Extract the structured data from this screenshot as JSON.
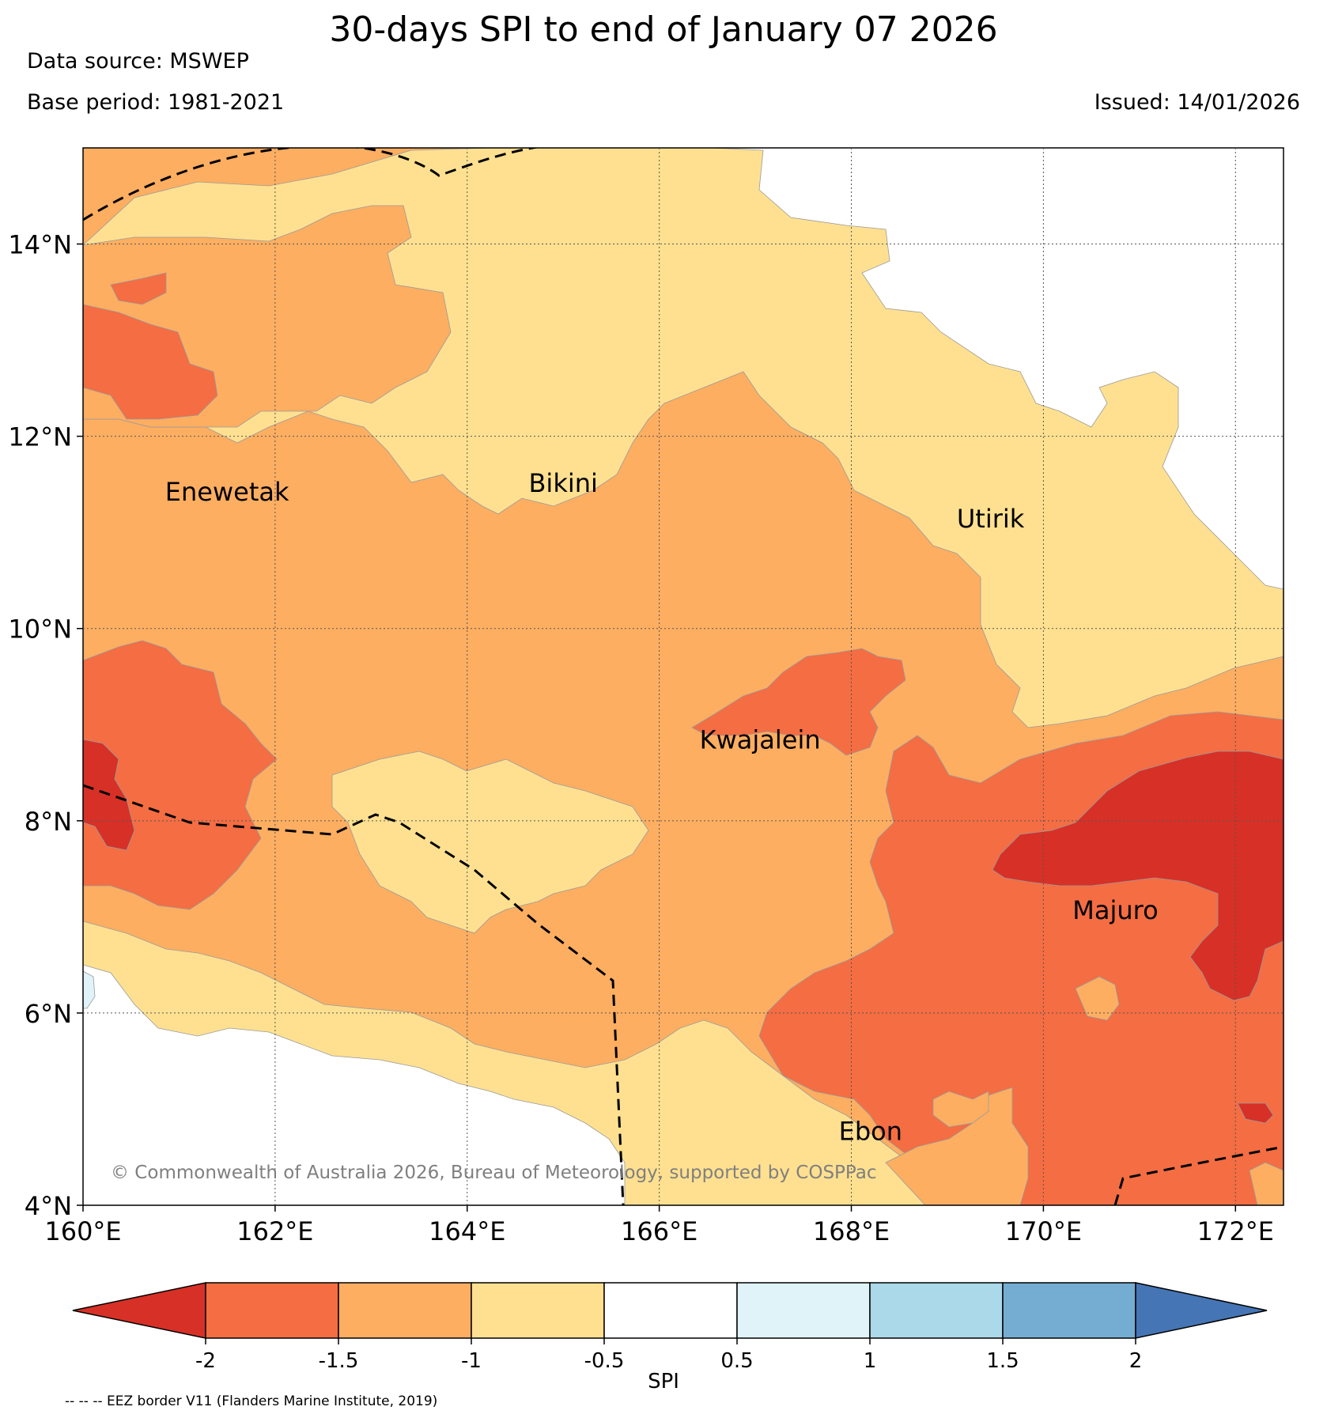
{
  "title": "30-days SPI to end of January 07 2026",
  "data_source": "Data source: MSWEP",
  "base_period": "Base period: 1981-2021",
  "issued": "Issued: 14/01/2026",
  "copyright": "© Commonwealth of Australia 2026, Bureau of Meteorology, supported by COSPPac",
  "map": {
    "lon_range": [
      160,
      172.5
    ],
    "lat_range": [
      4,
      15
    ],
    "x_ticks": [
      {
        "lon": 160,
        "label": "160°E"
      },
      {
        "lon": 162,
        "label": "162°E"
      },
      {
        "lon": 164,
        "label": "164°E"
      },
      {
        "lon": 166,
        "label": "166°E"
      },
      {
        "lon": 168,
        "label": "168°E"
      },
      {
        "lon": 170,
        "label": "170°E"
      },
      {
        "lon": 172,
        "label": "172°E"
      }
    ],
    "y_ticks": [
      {
        "lat": 4,
        "label": "4°N"
      },
      {
        "lat": 6,
        "label": "6°N"
      },
      {
        "lat": 8,
        "label": "8°N"
      },
      {
        "lat": 10,
        "label": "10°N"
      },
      {
        "lat": 12,
        "label": "12°N"
      },
      {
        "lat": 14,
        "label": "14°N"
      }
    ],
    "places": [
      {
        "name": "Enewetak",
        "lon": 161.5,
        "lat": 11.33
      },
      {
        "name": "Bikini",
        "lon": 165.0,
        "lat": 11.42
      },
      {
        "name": "Utirik",
        "lon": 169.45,
        "lat": 11.05
      },
      {
        "name": "Kwajalein",
        "lon": 167.05,
        "lat": 8.75
      },
      {
        "name": "Majuro",
        "lon": 170.75,
        "lat": 6.98
      },
      {
        "name": "Ebon",
        "lon": 168.2,
        "lat": 4.68
      }
    ]
  },
  "colorbar": {
    "label": "SPI",
    "ticks": [
      "-2",
      "-1.5",
      "-1",
      "-0.5",
      "0.5",
      "1",
      "1.5",
      "2"
    ],
    "colors": {
      "lt_neg2": "#d73027",
      "neg2_neg1_5": "#f46d43",
      "neg1_5_neg1": "#fdae61",
      "neg1_neg0_5": "#fee090",
      "neg0_5_0_5": "#ffffff",
      "p0_5_1": "#e0f3f8",
      "p1_1_5": "#abd9e9",
      "p1_5_2": "#74add1",
      "gt_2": "#4575b4"
    }
  },
  "eez_note": "-- -- -- EEZ border V11 (Flanders Marine Institute, 2019)"
}
